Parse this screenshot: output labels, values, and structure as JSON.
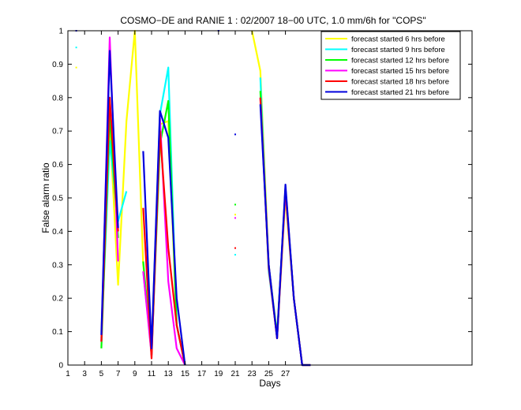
{
  "chart_data": {
    "type": "line",
    "title": "COSMO−DE and RANIE 1 : 02/2007 18−00 UTC, 1.0 mm/6h for \"COPS\"",
    "xlabel": "Days",
    "ylabel": "False alarm ratio",
    "xlim": [
      1,
      29
    ],
    "ylim": [
      0,
      1
    ],
    "grid": false,
    "legend_position": "top-right",
    "xticks": [
      1,
      3,
      5,
      7,
      9,
      11,
      13,
      15,
      17,
      19,
      21,
      23,
      25,
      27
    ],
    "xtick_labels": [
      "1",
      "3",
      "5",
      "7",
      "9",
      "11",
      "13",
      "15",
      "17",
      "19",
      "21",
      "23",
      "25",
      "27"
    ],
    "yticks": [
      0,
      0.1,
      0.2,
      0.3,
      0.4,
      0.5,
      0.6,
      0.7,
      0.8,
      0.9,
      1
    ],
    "ytick_labels": [
      "0",
      "0.1",
      "0.2",
      "0.3",
      "0.4",
      "0.5",
      "0.6",
      "0.7",
      "0.8",
      "0.9",
      "1"
    ],
    "series": [
      {
        "name": "forecast started 6 hrs before",
        "color": "#ffff00",
        "values": [
          null,
          0.89,
          null,
          null,
          0.1,
          0.72,
          0.24,
          0.73,
          1.0,
          0.3,
          0.06,
          0.72,
          0.73,
          0.12,
          null,
          null,
          null,
          null,
          1.0,
          null,
          0.45,
          null,
          1.0,
          0.88,
          0.3,
          0.08,
          0.5,
          0.2,
          0.0,
          0.0
        ]
      },
      {
        "name": "forecast started 9 hrs before",
        "color": "#00ffff",
        "values": [
          null,
          0.95,
          null,
          null,
          0.08,
          0.67,
          0.43,
          0.52,
          null,
          0.28,
          0.04,
          0.75,
          0.89,
          0.12,
          0.0,
          null,
          null,
          null,
          null,
          null,
          0.33,
          null,
          null,
          0.86,
          0.28,
          0.09,
          0.53,
          0.2,
          0.0,
          0.0
        ]
      },
      {
        "name": "forecast started 12 hrs before",
        "color": "#00ff00",
        "values": [
          null,
          null,
          null,
          null,
          0.05,
          0.75,
          0.38,
          null,
          null,
          0.31,
          0.03,
          0.66,
          0.79,
          0.12,
          0.0,
          null,
          null,
          null,
          null,
          null,
          0.48,
          null,
          null,
          0.82,
          0.3,
          0.09,
          0.52,
          0.2,
          0.0,
          0.0
        ]
      },
      {
        "name": "forecast started 15 hrs before",
        "color": "#ff00ff",
        "values": [
          null,
          null,
          null,
          null,
          0.07,
          0.98,
          0.31,
          null,
          null,
          0.28,
          0.03,
          0.74,
          0.25,
          0.05,
          0.0,
          null,
          null,
          null,
          null,
          null,
          0.44,
          null,
          null,
          0.8,
          0.3,
          0.08,
          0.52,
          0.2,
          0.0,
          0.0
        ]
      },
      {
        "name": "forecast started 18 hrs before",
        "color": "#ff0000",
        "values": [
          null,
          null,
          null,
          null,
          0.07,
          0.8,
          0.4,
          null,
          null,
          0.47,
          0.02,
          0.7,
          0.35,
          0.12,
          0.0,
          null,
          null,
          null,
          null,
          null,
          0.35,
          null,
          null,
          0.8,
          0.29,
          0.08,
          0.53,
          0.2,
          0.0,
          0.0
        ]
      },
      {
        "name": "forecast started 21 hrs before",
        "color": "#0000dd",
        "values": [
          null,
          1.0,
          null,
          null,
          0.09,
          0.94,
          0.41,
          null,
          null,
          0.64,
          0.05,
          0.76,
          0.68,
          0.2,
          0.0,
          null,
          null,
          null,
          1.0,
          null,
          0.69,
          null,
          null,
          0.78,
          0.3,
          0.08,
          0.54,
          0.2,
          0.0,
          0.0
        ]
      }
    ]
  }
}
